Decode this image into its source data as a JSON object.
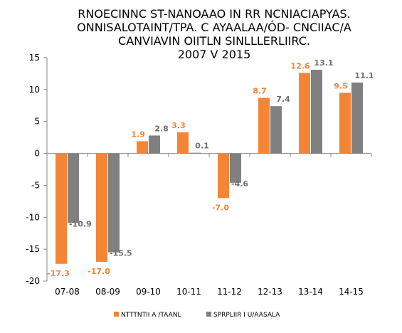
{
  "chart_data": {
    "type": "bar",
    "title_lines": [
      "RNOECINNC ST-NANOAAO IN RR NCNIACIAPYAS.",
      "ONNISALOTAINT/TPA. C AYAALAA/ÓD- CNCIIAC/A",
      "CANVIAVIN OIITLN SINLLLERLIIRC.",
      "2007 V 2015"
    ],
    "categories": [
      "07-08",
      "08-09",
      "09-10",
      "10-11",
      "11-12",
      "12-13",
      "13-14",
      "14-15"
    ],
    "ylim": [
      -20,
      15
    ],
    "yticks": [
      -20,
      -15,
      -10,
      -5,
      0,
      5,
      10,
      15
    ],
    "series": [
      {
        "name": "NTTTNTII A /TAANL",
        "color": "#f58536",
        "values": [
          -17.3,
          -17.0,
          1.9,
          3.3,
          -7.0,
          8.7,
          12.6,
          9.5
        ],
        "labels": [
          "-17.3",
          "-17.0",
          "1.9",
          "3.3",
          "-7.0",
          "8.7",
          "12.6",
          "9.5"
        ]
      },
      {
        "name": "SPRPLIIR I U/AASALA",
        "color": "#808080",
        "values": [
          -10.9,
          -15.5,
          2.8,
          0.1,
          -4.6,
          7.4,
          13.1,
          11.1
        ],
        "labels": [
          "-10.9",
          "-15.5",
          "2.8",
          "0.1",
          "-4.6",
          "7.4",
          "13.1",
          "11.1"
        ]
      }
    ],
    "label_colors": [
      "#f58536",
      "#6f6f6f"
    ],
    "grid": false,
    "legend_position": "bottom"
  }
}
